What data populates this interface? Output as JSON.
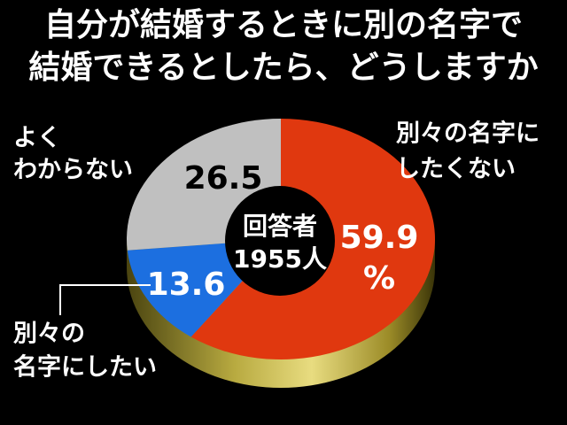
{
  "chart_data": {
    "type": "pie",
    "title": [
      "自分が結婚するときに別の名字で",
      "結婚できるとしたら、どうしますか"
    ],
    "center_label": [
      "回答者",
      "1955人"
    ],
    "categories": [
      [
        "別々の名字に",
        "したくない"
      ],
      [
        "別々の",
        "名字にしたい"
      ],
      [
        "よく",
        "わからない"
      ]
    ],
    "values": [
      59.9,
      13.6,
      26.5
    ],
    "value_labels": [
      [
        "59.9",
        "%"
      ],
      [
        "13.6"
      ],
      [
        "26.5"
      ]
    ],
    "colors": [
      "#e0380f",
      "#1c6fe0",
      "#c0c0c0"
    ],
    "value_label_colors": [
      "#ffffff",
      "#ffffff",
      "#000000"
    ]
  }
}
